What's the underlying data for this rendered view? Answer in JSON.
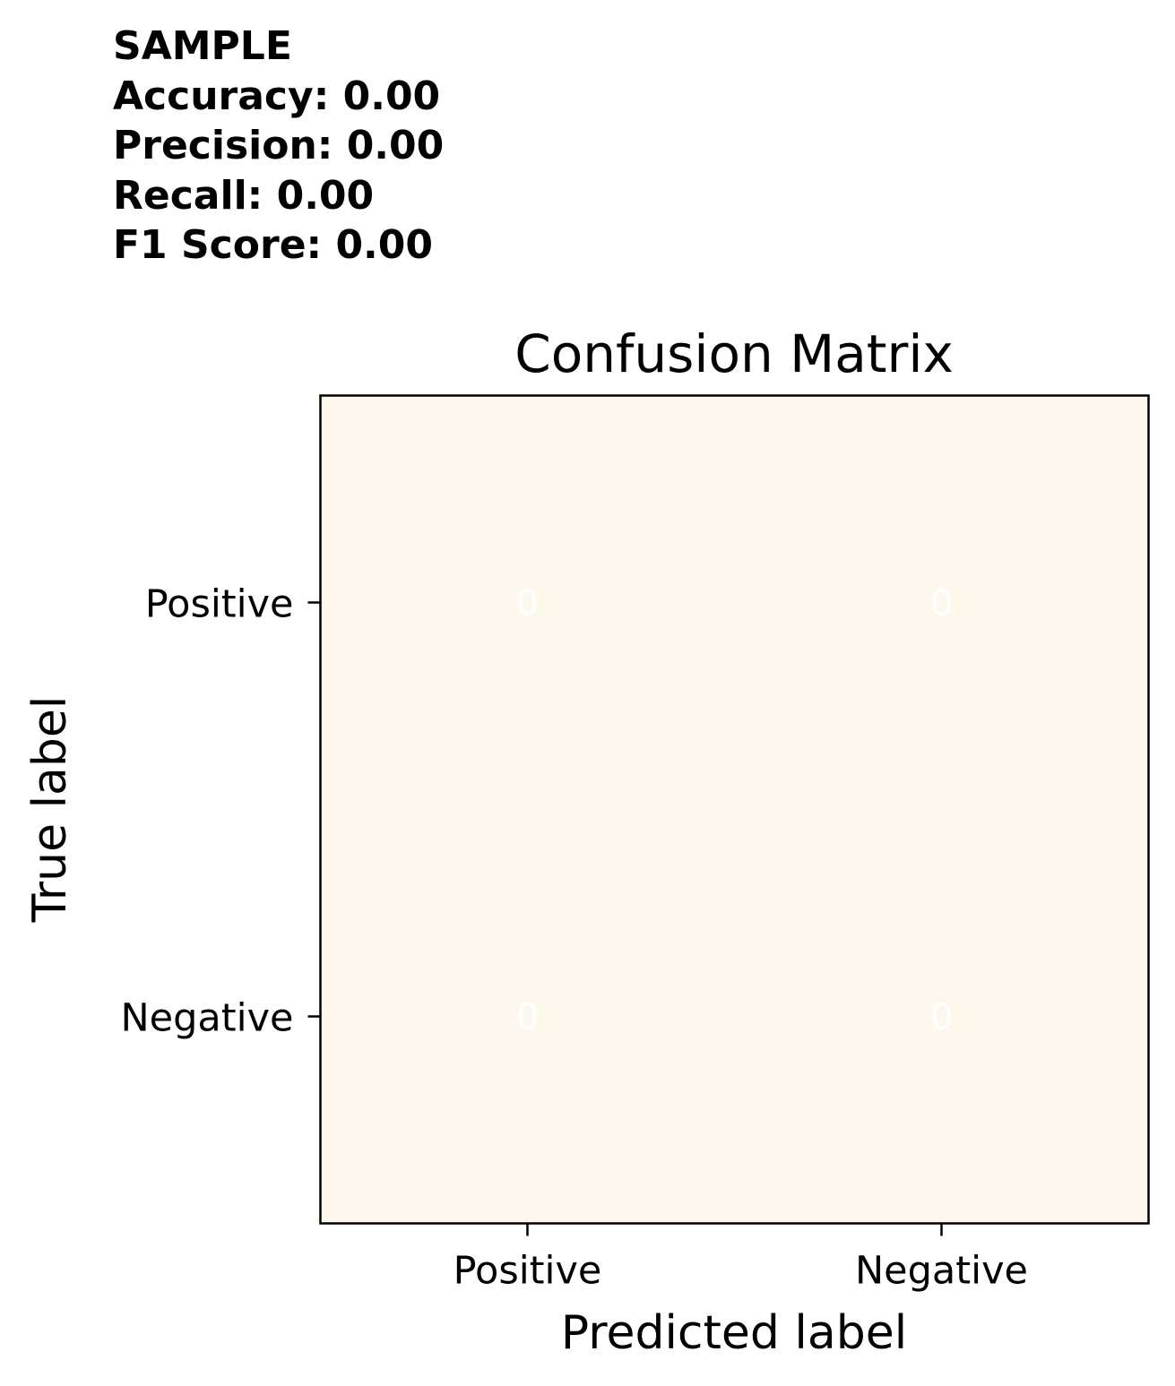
{
  "metrics": {
    "header": "SAMPLE",
    "lines": [
      "Accuracy: 0.00",
      "Precision: 0.00",
      "Recall: 0.00",
      "F1 Score: 0.00"
    ]
  },
  "chart_data": {
    "type": "heatmap",
    "title": "Confusion Matrix",
    "xlabel": "Predicted label",
    "ylabel": "True label",
    "x_categories": [
      "Positive",
      "Negative"
    ],
    "y_categories": [
      "Positive",
      "Negative"
    ],
    "values": [
      [
        0,
        0
      ],
      [
        0,
        0
      ]
    ],
    "grid": false,
    "colors": {
      "cell_fill": "#fef7ec",
      "cell_text": "#ffffff",
      "frame": "#000000"
    }
  }
}
